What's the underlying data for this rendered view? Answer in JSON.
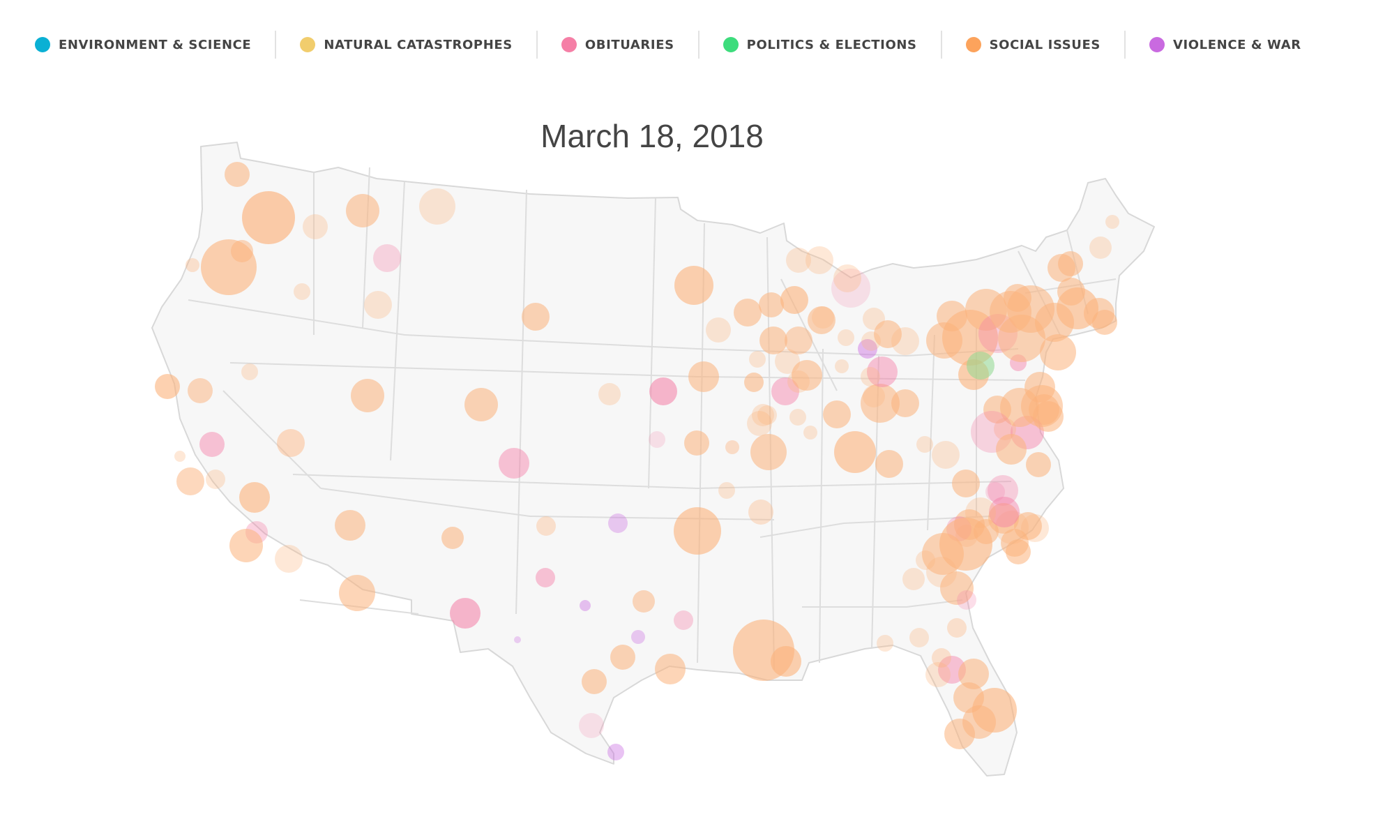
{
  "legend": {
    "items": [
      {
        "label": "ENVIRONMENT & SCIENCE",
        "color": "#0ab0d4"
      },
      {
        "label": "NATURAL CATASTROPHES",
        "color": "#f1cd6d"
      },
      {
        "label": "OBITUARIES",
        "color": "#f57fa6"
      },
      {
        "label": "POLITICS & ELECTIONS",
        "color": "#3ddc7c"
      },
      {
        "label": "SOCIAL ISSUES",
        "color": "#fca35c"
      },
      {
        "label": "VIOLENCE & WAR",
        "color": "#c96ae0"
      }
    ]
  },
  "map": {
    "date": "March 18, 2018",
    "colors": {
      "land": "#f7f7f7",
      "border": "#dcdcdc",
      "social": "#fcb27c",
      "obit": "#f47da6",
      "violence": "#c96ae0",
      "politics": "#8fd88f"
    }
  }
}
